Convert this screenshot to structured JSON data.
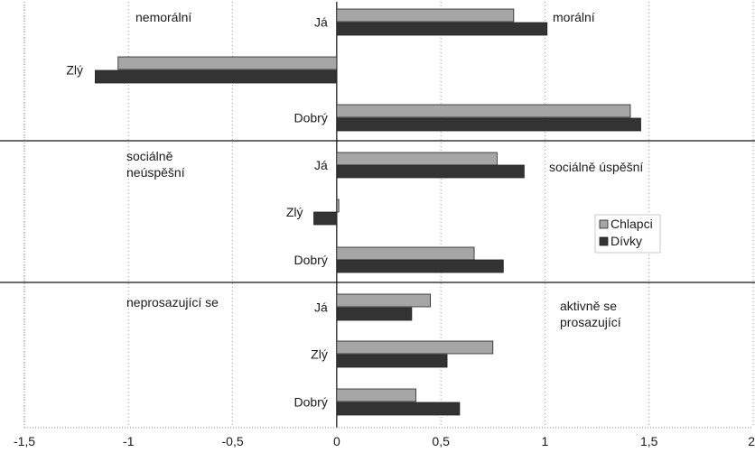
{
  "chart_data": {
    "type": "bar",
    "orientation": "horizontal",
    "xlim": [
      -1.5,
      2
    ],
    "x_ticks": [
      "-1,5",
      "-1",
      "-0,5",
      "0",
      "0,5",
      "1",
      "1,5",
      "2"
    ],
    "legend_position": "right",
    "series": [
      {
        "name": "Chlapci",
        "color": "#a6a6a6"
      },
      {
        "name": "Dívky",
        "color": "#333333"
      }
    ],
    "groups": [
      {
        "left_label": [
          "nemorální"
        ],
        "right_label": [
          "morální"
        ],
        "bars": [
          {
            "category": "Já",
            "values": [
              0.85,
              1.01
            ]
          },
          {
            "category": "Zlý",
            "values": [
              -1.05,
              -1.16
            ]
          },
          {
            "category": "Dobrý",
            "values": [
              1.41,
              1.46
            ]
          }
        ]
      },
      {
        "left_label": [
          "sociálně",
          "neúspěšní"
        ],
        "right_label": [
          "sociálně úspěšní"
        ],
        "bars": [
          {
            "category": "Já",
            "values": [
              0.77,
              0.9
            ]
          },
          {
            "category": "Zlý",
            "values": [
              0.01,
              -0.11
            ]
          },
          {
            "category": "Dobrý",
            "values": [
              0.66,
              0.8
            ]
          }
        ]
      },
      {
        "left_label": [
          "neprosazující se"
        ],
        "right_label": [
          "aktivně se",
          "prosazující"
        ],
        "bars": [
          {
            "category": "Já",
            "values": [
              0.45,
              0.36
            ]
          },
          {
            "category": "Zlý",
            "values": [
              0.75,
              0.53
            ]
          },
          {
            "category": "Dobrý",
            "values": [
              0.38,
              0.59
            ]
          }
        ]
      }
    ]
  }
}
